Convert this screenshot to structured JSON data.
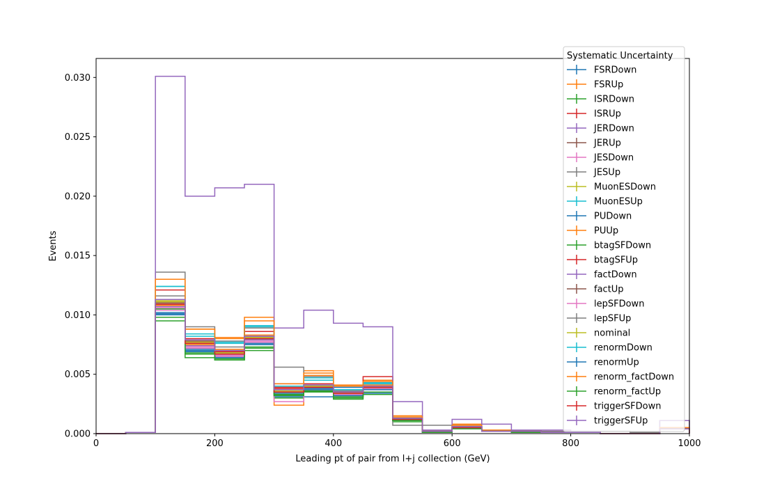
{
  "chart_data": {
    "type": "line",
    "title": "",
    "xlabel": "Leading pt of pair from l+j collection (GeV)",
    "ylabel": "Events",
    "xlim": [
      0,
      1000
    ],
    "ylim": [
      0,
      0.0316
    ],
    "x_ticks": [
      "0",
      "200",
      "400",
      "600",
      "800",
      "1000"
    ],
    "y_ticks": [
      "0.000",
      "0.005",
      "0.010",
      "0.015",
      "0.020",
      "0.025",
      "0.030"
    ],
    "grid": false,
    "legend_title": "Systematic Uncertainty",
    "legend_position": "upper right",
    "bin_edges": [
      0,
      50,
      100,
      150,
      200,
      250,
      300,
      350,
      400,
      450,
      500,
      550,
      600,
      650,
      700,
      750,
      800,
      850,
      900,
      950,
      1000
    ],
    "series": [
      {
        "name": "FSRDown",
        "color": "#1f77b4",
        "values": [
          0,
          0.0001,
          0.0101,
          0.0069,
          0.0065,
          0.0076,
          0.0031,
          0.0031,
          0.0031,
          0.0034,
          0.0011,
          0.0001,
          0.0005,
          0.0002,
          0.0001,
          0.0001,
          0.0001,
          0,
          0,
          0.0004
        ]
      },
      {
        "name": "FSRUp",
        "color": "#ff7f0e",
        "values": [
          0,
          0.0001,
          0.013,
          0.0088,
          0.008,
          0.0098,
          0.0024,
          0.0053,
          0.0041,
          0.0045,
          0.0015,
          0.0002,
          0.0008,
          0.0003,
          0.0002,
          0.0001,
          0.0001,
          0,
          0,
          0.0005
        ]
      },
      {
        "name": "ISRDown",
        "color": "#2ca02c",
        "values": [
          0,
          0.0001,
          0.0095,
          0.0064,
          0.0062,
          0.007,
          0.003,
          0.0035,
          0.0029,
          0.0033,
          0.001,
          0.0001,
          0.0004,
          0.0002,
          0.0001,
          0.0001,
          0.0001,
          0,
          0,
          0.0004
        ]
      },
      {
        "name": "ISRUp",
        "color": "#d62728",
        "values": [
          0,
          0.0001,
          0.0121,
          0.008,
          0.007,
          0.0086,
          0.0038,
          0.0042,
          0.0036,
          0.0048,
          0.0013,
          0.0002,
          0.0006,
          0.0002,
          0.0002,
          0.0002,
          0.0001,
          0,
          0,
          0.0005
        ]
      },
      {
        "name": "JERDown",
        "color": "#9467bd",
        "values": [
          0,
          0.0001,
          0.0107,
          0.0074,
          0.0066,
          0.0079,
          0.0042,
          0.0037,
          0.0033,
          0.0038,
          0.0013,
          0.0002,
          0.0005,
          0.0002,
          0.0002,
          0.0001,
          0.0001,
          0,
          0,
          0.0004
        ]
      },
      {
        "name": "JERUp",
        "color": "#8c564b",
        "values": [
          0,
          0.0001,
          0.0109,
          0.0076,
          0.0067,
          0.008,
          0.0035,
          0.0039,
          0.0034,
          0.0039,
          0.0013,
          0.0002,
          0.0005,
          0.0002,
          0.0002,
          0.0001,
          0.0001,
          0,
          0,
          0.0004
        ]
      },
      {
        "name": "JESDown",
        "color": "#e377c2",
        "values": [
          0,
          0.0001,
          0.0104,
          0.0072,
          0.0065,
          0.0077,
          0.0027,
          0.0036,
          0.0032,
          0.0037,
          0.0012,
          0.0002,
          0.0005,
          0.0002,
          0.0002,
          0.0001,
          0.0001,
          0,
          0,
          0.0004
        ]
      },
      {
        "name": "JESUp",
        "color": "#7f7f7f",
        "values": [
          0,
          0.0001,
          0.0136,
          0.009,
          0.0078,
          0.0089,
          0.0056,
          0.0048,
          0.0036,
          0.0038,
          0.0007,
          0.0007,
          0.0007,
          0.0002,
          0.0002,
          0.0002,
          0.0001,
          0.0002,
          0.0001,
          0.0011
        ]
      },
      {
        "name": "MuonESDown",
        "color": "#bcbd22",
        "values": [
          0,
          0.0001,
          0.0112,
          0.0078,
          0.0068,
          0.0081,
          0.0034,
          0.004,
          0.0035,
          0.004,
          0.0012,
          0.0002,
          0.0006,
          0.0002,
          0.0002,
          0.0001,
          0.0001,
          0,
          0,
          0.0004
        ]
      },
      {
        "name": "MuonESUp",
        "color": "#17becf",
        "values": [
          0,
          0.0001,
          0.0124,
          0.0082,
          0.0076,
          0.0091,
          0.0033,
          0.0047,
          0.0037,
          0.0043,
          0.0012,
          0.0002,
          0.0006,
          0.0002,
          0.0002,
          0.0001,
          0.0001,
          0,
          0,
          0.0004
        ]
      },
      {
        "name": "PUDown",
        "color": "#1f77b4",
        "values": [
          0,
          0.0001,
          0.01,
          0.007,
          0.0064,
          0.0075,
          0.0032,
          0.0038,
          0.0039,
          0.0042,
          0.0012,
          0.0001,
          0.0005,
          0.0002,
          0.0001,
          0.0001,
          0.0001,
          0,
          0,
          0.0004
        ]
      },
      {
        "name": "PUUp",
        "color": "#ff7f0e",
        "values": [
          0,
          0.0001,
          0.0108,
          0.0075,
          0.0071,
          0.0083,
          0.0033,
          0.0051,
          0.0035,
          0.0041,
          0.0012,
          0.0002,
          0.0006,
          0.0002,
          0.0002,
          0.0001,
          0.0001,
          0,
          0,
          0.0004
        ]
      },
      {
        "name": "btagSFDown",
        "color": "#2ca02c",
        "values": [
          0,
          0.0001,
          0.0105,
          0.0067,
          0.0063,
          0.0072,
          0.0032,
          0.0036,
          0.003,
          0.0033,
          0.0011,
          0.0001,
          0.0005,
          0.0002,
          0.0001,
          0.0001,
          0.0001,
          0,
          0,
          0.0004
        ]
      },
      {
        "name": "btagSFUp",
        "color": "#d62728",
        "values": [
          0,
          0.0001,
          0.0111,
          0.0077,
          0.0069,
          0.0082,
          0.0039,
          0.004,
          0.0034,
          0.004,
          0.0013,
          0.0002,
          0.0006,
          0.0002,
          0.0002,
          0.0001,
          0.0001,
          0,
          0,
          0.0004
        ]
      },
      {
        "name": "factDown",
        "color": "#9467bd",
        "values": [
          0,
          0.0001,
          0.0301,
          0.02,
          0.0207,
          0.021,
          0.0089,
          0.0104,
          0.0093,
          0.009,
          0.0027,
          0.0003,
          0.0012,
          0.0008,
          0.0003,
          0.0003,
          0.0002,
          0,
          0,
          0.0011
        ]
      },
      {
        "name": "factUp",
        "color": "#8c564b",
        "values": [
          0,
          0.0001,
          0.011,
          0.0078,
          0.0068,
          0.008,
          0.004,
          0.0039,
          0.0034,
          0.0039,
          0.0012,
          0.0002,
          0.0005,
          0.0002,
          0.0002,
          0.0001,
          0.0001,
          0,
          0,
          0.0004
        ]
      },
      {
        "name": "lepSFDown",
        "color": "#e377c2",
        "values": [
          0,
          0.0001,
          0.0106,
          0.0073,
          0.0066,
          0.0078,
          0.0036,
          0.0037,
          0.0033,
          0.0038,
          0.0012,
          0.0002,
          0.0005,
          0.0002,
          0.0002,
          0.0001,
          0.0001,
          0,
          0,
          0.0004
        ]
      },
      {
        "name": "lepSFUp",
        "color": "#7f7f7f",
        "values": [
          0,
          0.0001,
          0.0116,
          0.0079,
          0.0073,
          0.0082,
          0.0037,
          0.0041,
          0.0035,
          0.004,
          0.0013,
          0.0002,
          0.0006,
          0.0002,
          0.0002,
          0.0001,
          0.0001,
          0,
          0,
          0.0004
        ]
      },
      {
        "name": "nominal",
        "color": "#bcbd22",
        "values": [
          0,
          0.0001,
          0.0111,
          0.0077,
          0.0068,
          0.0081,
          0.0036,
          0.004,
          0.0034,
          0.0039,
          0.0012,
          0.0002,
          0.0005,
          0.0002,
          0.0002,
          0.0001,
          0.0001,
          0,
          0,
          0.0004
        ]
      },
      {
        "name": "renormDown",
        "color": "#17becf",
        "values": [
          0,
          0.0001,
          0.0124,
          0.0084,
          0.0077,
          0.009,
          0.004,
          0.0045,
          0.0037,
          0.0042,
          0.0013,
          0.0002,
          0.0006,
          0.0002,
          0.0002,
          0.0001,
          0.0001,
          0,
          0,
          0.0004
        ]
      },
      {
        "name": "renormUp",
        "color": "#1f77b4",
        "values": [
          0,
          0.0001,
          0.0102,
          0.0071,
          0.0064,
          0.0075,
          0.0034,
          0.0037,
          0.0032,
          0.0037,
          0.0012,
          0.0001,
          0.0005,
          0.0002,
          0.0001,
          0.0001,
          0.0001,
          0,
          0,
          0.0004
        ]
      },
      {
        "name": "renorm_factDown",
        "color": "#ff7f0e",
        "values": [
          0,
          0.0001,
          0.013,
          0.0088,
          0.0081,
          0.0095,
          0.0042,
          0.0049,
          0.004,
          0.0044,
          0.0014,
          0.0002,
          0.0007,
          0.0002,
          0.0002,
          0.0001,
          0.0001,
          0,
          0,
          0.0005
        ]
      },
      {
        "name": "renorm_factUp",
        "color": "#2ca02c",
        "values": [
          0,
          0.0001,
          0.0098,
          0.0068,
          0.0062,
          0.0073,
          0.0033,
          0.0036,
          0.0031,
          0.0035,
          0.0011,
          0.0001,
          0.0005,
          0.0002,
          0.0001,
          0.0001,
          0.0001,
          0,
          0,
          0.0004
        ]
      },
      {
        "name": "triggerSFDown",
        "color": "#d62728",
        "values": [
          0,
          0.0001,
          0.0109,
          0.0076,
          0.0067,
          0.008,
          0.0035,
          0.0039,
          0.0034,
          0.0039,
          0.0012,
          0.0002,
          0.0005,
          0.0002,
          0.0002,
          0.0001,
          0.0001,
          0,
          0,
          0.0004
        ]
      },
      {
        "name": "triggerSFUp",
        "color": "#9467bd",
        "values": [
          0,
          0.0001,
          0.0113,
          0.0079,
          0.007,
          0.0082,
          0.0037,
          0.0041,
          0.0035,
          0.004,
          0.0013,
          0.0002,
          0.0006,
          0.0002,
          0.0002,
          0.0001,
          0.0001,
          0,
          0,
          0.0004
        ]
      }
    ]
  }
}
